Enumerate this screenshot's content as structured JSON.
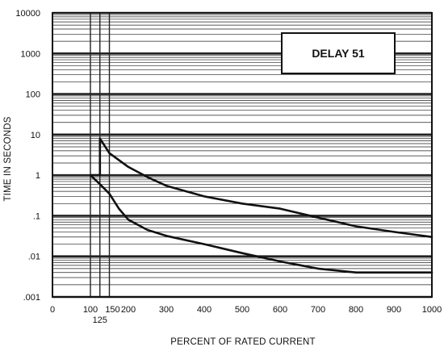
{
  "chart_data": {
    "type": "line",
    "xlabel": "PERCENT OF RATED CURRENT",
    "ylabel": "TIME IN SECONDS",
    "xlim": [
      0,
      1000
    ],
    "ylim": [
      0.001,
      10000
    ],
    "yscale": "log",
    "grid": true,
    "x_ticks": [
      0,
      100,
      125,
      150,
      200,
      300,
      400,
      500,
      600,
      700,
      800,
      900,
      1000
    ],
    "x_tick_labels": [
      "0",
      "100",
      "125",
      "150",
      "200",
      "300",
      "400",
      "500",
      "600",
      "700",
      "800",
      "900",
      "1000"
    ],
    "y_ticks": [
      0.001,
      0.01,
      0.1,
      1,
      10,
      100,
      1000,
      10000
    ],
    "y_tick_labels": [
      ".001",
      ".01",
      ".1",
      "1",
      "10",
      "100",
      "1000",
      "10000"
    ],
    "annotation": "DELAY 51",
    "series": [
      {
        "x": [
          100,
          125,
          125,
          150,
          200,
          250,
          300,
          400,
          500,
          600,
          700,
          800,
          900,
          1000
        ],
        "y": [
          1,
          1,
          8,
          3.5,
          1.6,
          0.9,
          0.55,
          0.3,
          0.2,
          0.15,
          0.09,
          0.055,
          0.04,
          0.03
        ]
      },
      {
        "x": [
          100,
          125,
          125,
          150,
          175,
          200,
          250,
          300,
          400,
          500,
          600,
          700,
          800,
          900,
          1000
        ],
        "y": [
          1,
          0.6,
          0.6,
          0.35,
          0.15,
          0.08,
          0.045,
          0.032,
          0.02,
          0.012,
          0.0075,
          0.005,
          0.004,
          0.004,
          0.004
        ]
      }
    ],
    "colors": {
      "grid": "#222222",
      "curve": "#111111",
      "background": "#ffffff"
    }
  }
}
